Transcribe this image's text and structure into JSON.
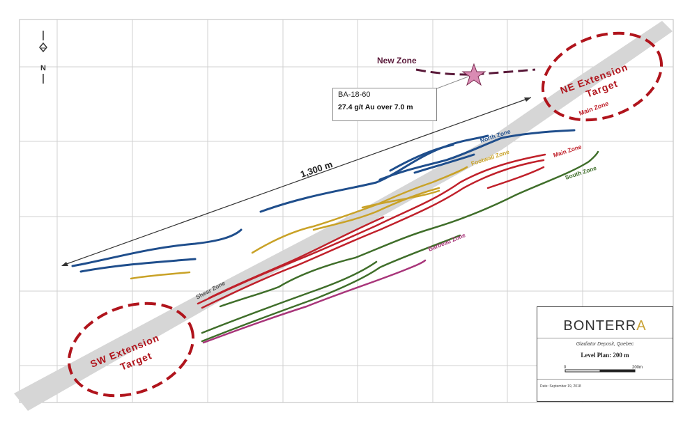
{
  "map": {
    "labels": {
      "new_zone": "New Zone",
      "ne_target_line1": "NE Extension",
      "ne_target_line2": "Target",
      "sw_target_line1": "SW Extension",
      "sw_target_line2": "Target",
      "main_zone_ne": "Main Zone",
      "north_zone": "North Zone",
      "footwall_zone": "Footwall Zone",
      "main_zone": "Main Zone",
      "south_zone": "South Zone",
      "barbeau_zone": "Barbeau Zone",
      "shear_zone": "Shear Zone",
      "distance": "1,300 m",
      "north_arrow": "N"
    },
    "callout": {
      "hole": "BA-18-60",
      "grade": "27.4 g/t Au over 7.0 m"
    },
    "colors": {
      "north_zone": "#1f4e8c",
      "footwall_zone": "#c9a227",
      "main_zone": "#c0202a",
      "south_zone": "#3f6e2a",
      "barbeau_zone": "#a8357a",
      "target_ellipse": "#b0141c",
      "new_zone": "#5a1a3a",
      "star": "#d98bb3",
      "shear_zone": "#d3d3d3"
    },
    "legend": {
      "logo_main": "BONTERR",
      "logo_accent": "A",
      "subtitle": "Gladiator Deposit, Quebec",
      "plan": "Level Plan: 200 m",
      "scale_start": "0",
      "scale_end": "200m",
      "date": "Date: September 19, 2018"
    }
  }
}
